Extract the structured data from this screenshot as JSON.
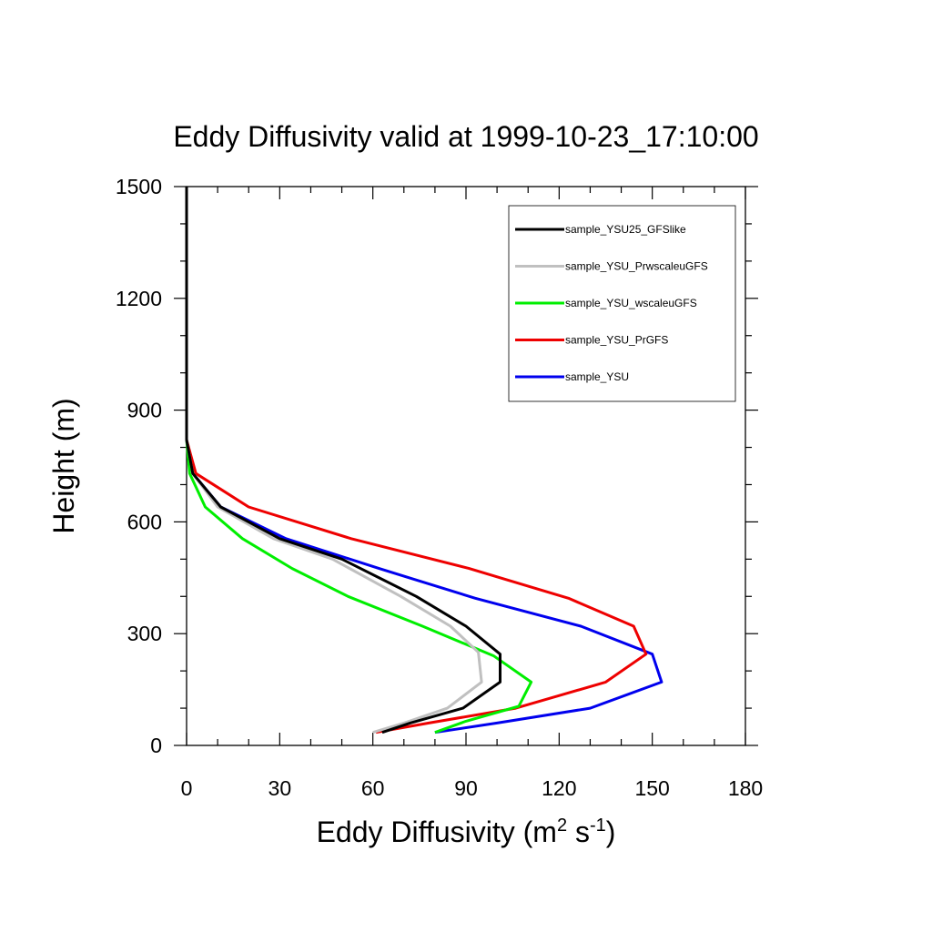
{
  "chart_data": {
    "type": "line",
    "title": "Eddy Diffusivity valid at 1999-10-23_17:10:00",
    "xlabel": {
      "base": "Eddy Diffusivity (m",
      "sup1": "2",
      "mid": " s",
      "sup2": "-1",
      "end": ")"
    },
    "ylabel": "Height (m)",
    "xlim": [
      0,
      180
    ],
    "ylim": [
      0,
      1500
    ],
    "xticks": [
      0,
      30,
      60,
      90,
      120,
      150,
      180
    ],
    "yticks": [
      0,
      300,
      600,
      900,
      1200,
      1500
    ],
    "grid": false,
    "legend_position": "top-right",
    "series": [
      {
        "name": "sample_YSU25_GFSlike",
        "color": "#000000",
        "points": [
          [
            63,
            35
          ],
          [
            72,
            60
          ],
          [
            89,
            100
          ],
          [
            101,
            170
          ],
          [
            101,
            245
          ],
          [
            90,
            320
          ],
          [
            74,
            400
          ],
          [
            50,
            500
          ],
          [
            30,
            555
          ],
          [
            11,
            640
          ],
          [
            2,
            730
          ],
          [
            0,
            820
          ],
          [
            0,
            900
          ],
          [
            0,
            1200
          ],
          [
            0,
            1500
          ]
        ]
      },
      {
        "name": "sample_YSU_PrwscaleuGFS",
        "color": "#c0c0c0",
        "points": [
          [
            60,
            35
          ],
          [
            70,
            60
          ],
          [
            84,
            100
          ],
          [
            95,
            170
          ],
          [
            94,
            250
          ],
          [
            85,
            320
          ],
          [
            69,
            400
          ],
          [
            47,
            500
          ],
          [
            28,
            555
          ],
          [
            10,
            640
          ],
          [
            2,
            730
          ],
          [
            0,
            820
          ],
          [
            0,
            900
          ],
          [
            0,
            1200
          ],
          [
            0,
            1500
          ]
        ]
      },
      {
        "name": "sample_YSU_wscaleuGFS",
        "color": "#00ee00",
        "points": [
          [
            80,
            35
          ],
          [
            90,
            65
          ],
          [
            107,
            105
          ],
          [
            111,
            170
          ],
          [
            99,
            240
          ],
          [
            76,
            320
          ],
          [
            52,
            400
          ],
          [
            34,
            475
          ],
          [
            18,
            555
          ],
          [
            6,
            640
          ],
          [
            1,
            730
          ],
          [
            0,
            820
          ],
          [
            0,
            900
          ],
          [
            0,
            1200
          ],
          [
            0,
            1500
          ]
        ]
      },
      {
        "name": "sample_YSU_PrGFS",
        "color": "#ee0000",
        "points": [
          [
            61,
            35
          ],
          [
            78,
            60
          ],
          [
            106,
            100
          ],
          [
            135,
            170
          ],
          [
            148,
            245
          ],
          [
            144,
            320
          ],
          [
            123,
            395
          ],
          [
            91,
            475
          ],
          [
            53,
            555
          ],
          [
            20,
            640
          ],
          [
            3,
            730
          ],
          [
            0,
            820
          ],
          [
            0,
            900
          ],
          [
            0,
            1200
          ],
          [
            0,
            1500
          ]
        ]
      },
      {
        "name": "sample_YSU",
        "color": "#0000ee",
        "points": [
          [
            80,
            35
          ],
          [
            100,
            60
          ],
          [
            130,
            100
          ],
          [
            153,
            170
          ],
          [
            150,
            245
          ],
          [
            127,
            320
          ],
          [
            93,
            395
          ],
          [
            62,
            475
          ],
          [
            32,
            555
          ],
          [
            11,
            640
          ],
          [
            2,
            730
          ],
          [
            0,
            820
          ],
          [
            0,
            900
          ],
          [
            0,
            1200
          ],
          [
            0,
            1500
          ]
        ]
      }
    ]
  }
}
